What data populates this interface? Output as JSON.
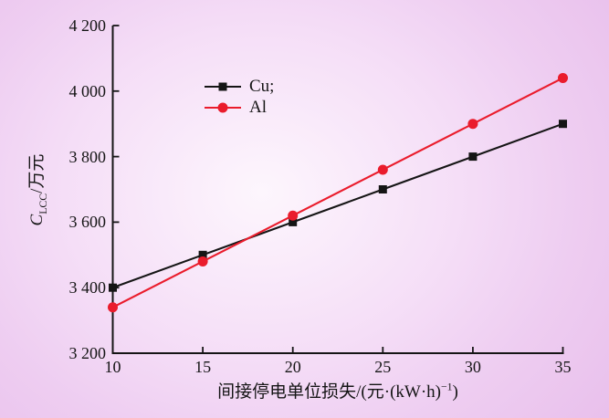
{
  "colors": {
    "background_center": "#fdf6fd",
    "background_edge": "#e9c0ec",
    "axis": "#151515",
    "cu_series": "#151515",
    "al_series": "#ea1c2c"
  },
  "chart_data": {
    "type": "line",
    "x": [
      10,
      15,
      20,
      25,
      30,
      35
    ],
    "series": [
      {
        "name": "cu",
        "label": "Cu;",
        "color": "#151515",
        "marker": "square",
        "values": [
          3400,
          3500,
          3600,
          3700,
          3800,
          3900
        ]
      },
      {
        "name": "al",
        "label": "Al",
        "color": "#ea1c2c",
        "marker": "circle",
        "values": [
          3340,
          3480,
          3620,
          3760,
          3900,
          4040
        ]
      }
    ],
    "xlabel_full": "间接停电单位损失/(元·(kW·h)−1)",
    "xlabel_pre": "间接停电单位损失/(元·(kW·h)",
    "xlabel_sup": "−1",
    "xlabel_post": ")",
    "ylabel_full": "CLCC/万元",
    "ylabel_var": "C",
    "ylabel_sub": "LCC",
    "ylabel_unit": "/万元",
    "xlim": [
      10,
      35
    ],
    "ylim": [
      3200,
      4200
    ],
    "xticks": [
      10,
      15,
      20,
      25,
      30,
      35
    ],
    "xtick_labels": [
      "10",
      "15",
      "20",
      "25",
      "30",
      "35"
    ],
    "yticks": [
      3200,
      3400,
      3600,
      3800,
      4000,
      4200
    ],
    "ytick_labels": [
      "3 200",
      "3 400",
      "3 600",
      "3 800",
      "4 000",
      "4 200"
    ],
    "grid": false,
    "legend_position": "upper-center-left"
  }
}
